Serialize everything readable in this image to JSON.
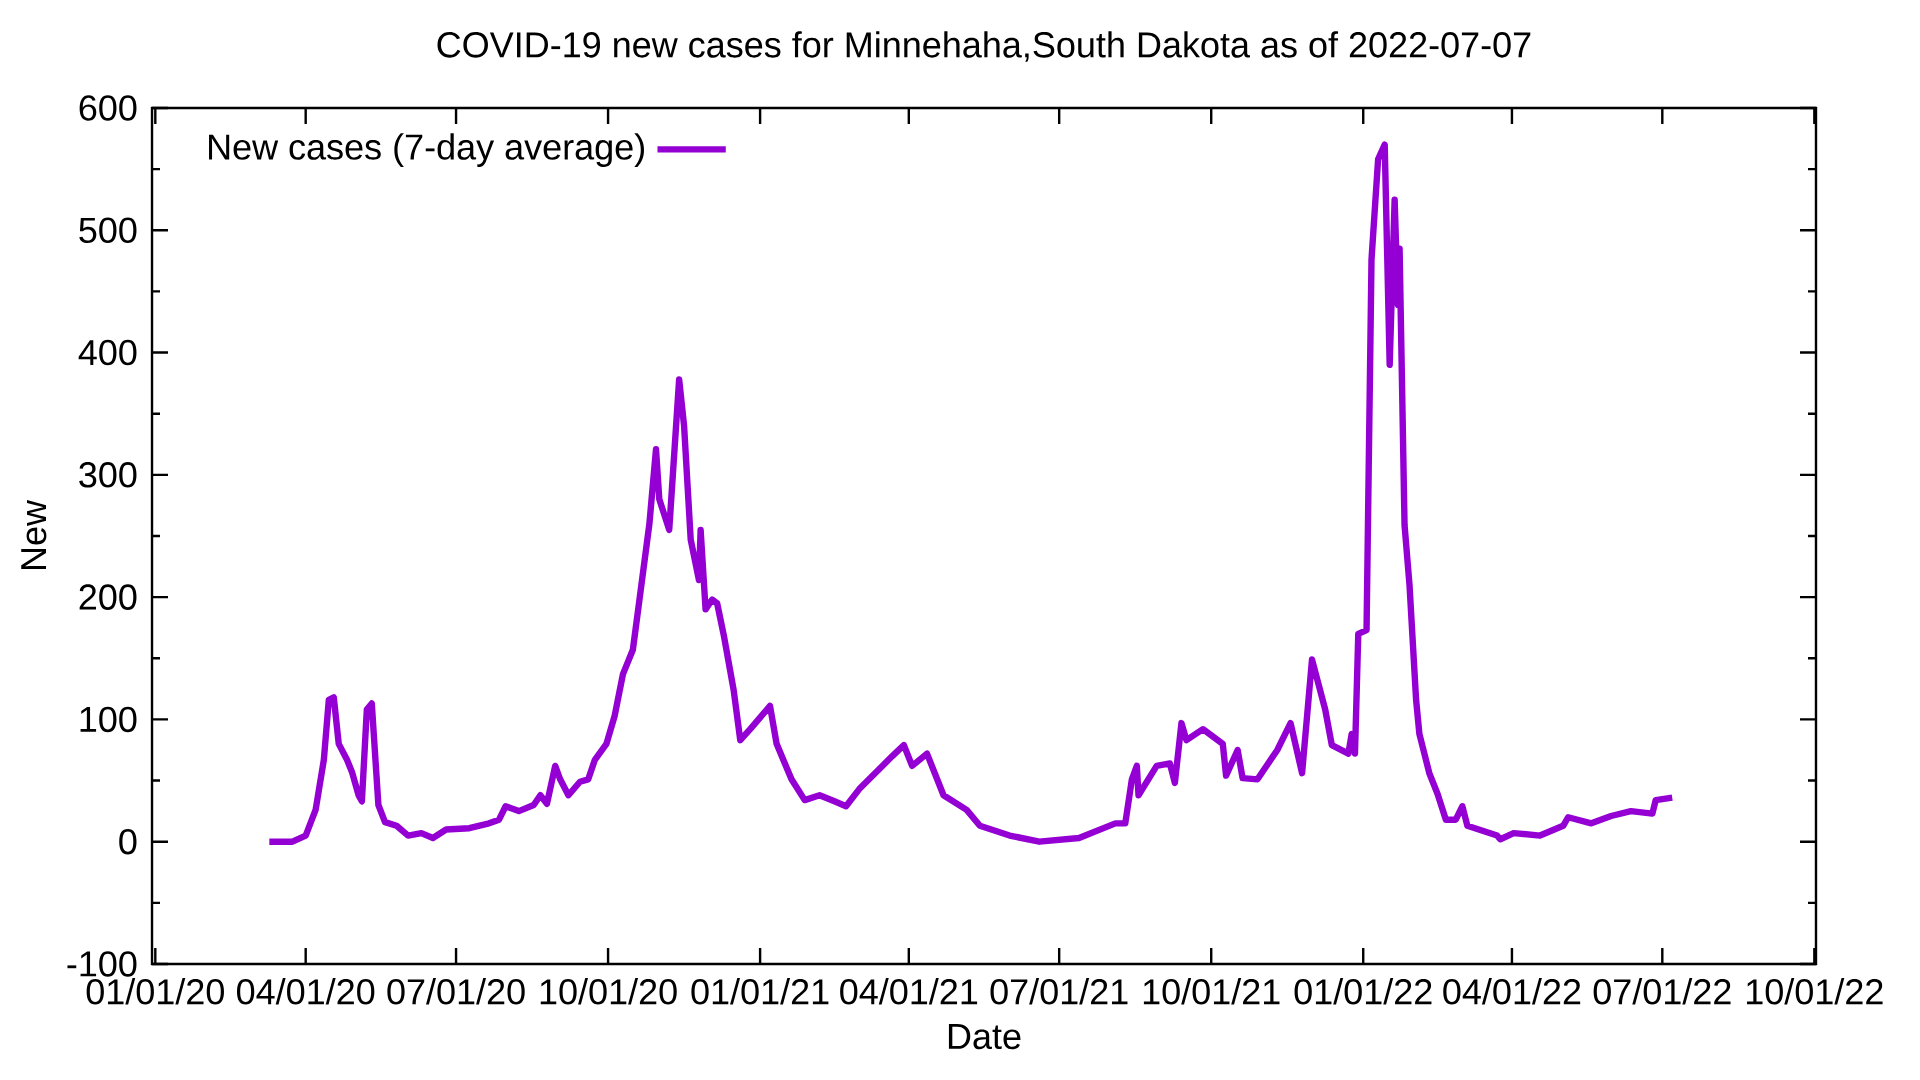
{
  "chart_data": {
    "type": "line",
    "title": "COVID-19 new cases for Minnehaha,South Dakota as of 2022-07-07",
    "xlabel": "Date",
    "ylabel": "New",
    "xlim": [
      "2019-12-30",
      "2022-10-02"
    ],
    "ylim": [
      -100,
      600
    ],
    "xticks": [
      {
        "value": "2020-01-01",
        "label": "01/01/20"
      },
      {
        "value": "2020-04-01",
        "label": "04/01/20"
      },
      {
        "value": "2020-07-01",
        "label": "07/01/20"
      },
      {
        "value": "2020-10-01",
        "label": "10/01/20"
      },
      {
        "value": "2021-01-01",
        "label": "01/01/21"
      },
      {
        "value": "2021-04-01",
        "label": "04/01/21"
      },
      {
        "value": "2021-07-01",
        "label": "07/01/21"
      },
      {
        "value": "2021-10-01",
        "label": "10/01/21"
      },
      {
        "value": "2022-01-01",
        "label": "01/01/22"
      },
      {
        "value": "2022-04-01",
        "label": "04/01/22"
      },
      {
        "value": "2022-07-01",
        "label": "07/01/22"
      },
      {
        "value": "2022-10-01",
        "label": "10/01/22"
      }
    ],
    "yticks": [
      -100,
      0,
      100,
      200,
      300,
      400,
      500,
      600
    ],
    "grid": false,
    "legend": "top left",
    "marker": "none",
    "line_style": "solid",
    "x": [
      "2020-03-10",
      "2020-03-24",
      "2020-04-01",
      "2020-04-07",
      "2020-04-12",
      "2020-04-15",
      "2020-04-18",
      "2020-04-21",
      "2020-04-26",
      "2020-04-29",
      "2020-05-03",
      "2020-05-05",
      "2020-05-08",
      "2020-05-11",
      "2020-05-15",
      "2020-05-19",
      "2020-05-26",
      "2020-06-02",
      "2020-06-10",
      "2020-06-17",
      "2020-06-25",
      "2020-07-09",
      "2020-07-21",
      "2020-07-27",
      "2020-07-31",
      "2020-08-08",
      "2020-08-17",
      "2020-08-21",
      "2020-08-25",
      "2020-08-30",
      "2020-09-02",
      "2020-09-07",
      "2020-09-14",
      "2020-09-19",
      "2020-09-23",
      "2020-09-30",
      "2020-10-05",
      "2020-10-10",
      "2020-10-16",
      "2020-10-20",
      "2020-10-26",
      "2020-10-30",
      "2020-11-01",
      "2020-11-07",
      "2020-11-13",
      "2020-11-16",
      "2020-11-20",
      "2020-11-25",
      "2020-11-26",
      "2020-11-29",
      "2020-12-03",
      "2020-12-06",
      "2020-12-10",
      "2020-12-16",
      "2020-12-20",
      "2020-12-26",
      "2021-01-07",
      "2021-01-11",
      "2021-01-20",
      "2021-01-28",
      "2021-02-06",
      "2021-02-15",
      "2021-02-22",
      "2021-03-02",
      "2021-03-22",
      "2021-03-29",
      "2021-04-03",
      "2021-04-12",
      "2021-04-22",
      "2021-05-06",
      "2021-05-14",
      "2021-06-01",
      "2021-06-19",
      "2021-07-13",
      "2021-08-04",
      "2021-08-10",
      "2021-08-14",
      "2021-08-17",
      "2021-08-18",
      "2021-08-29",
      "2021-09-06",
      "2021-09-09",
      "2021-09-13",
      "2021-09-16",
      "2021-09-26",
      "2021-10-08",
      "2021-10-10",
      "2021-10-17",
      "2021-10-20",
      "2021-10-29",
      "2021-11-10",
      "2021-11-18",
      "2021-11-25",
      "2021-12-01",
      "2021-12-09",
      "2021-12-13",
      "2021-12-23",
      "2021-12-25",
      "2021-12-27",
      "2021-12-29",
      "2022-01-03",
      "2022-01-06",
      "2022-01-10",
      "2022-01-14",
      "2022-01-17",
      "2022-01-20",
      "2022-01-22",
      "2022-01-23",
      "2022-01-26",
      "2022-01-29",
      "2022-02-02",
      "2022-02-04",
      "2022-02-10",
      "2022-02-15",
      "2022-02-20",
      "2022-02-26",
      "2022-03-02",
      "2022-03-05",
      "2022-03-23",
      "2022-03-25",
      "2022-04-02",
      "2022-04-18",
      "2022-05-02",
      "2022-05-05",
      "2022-05-19",
      "2022-05-31",
      "2022-06-12",
      "2022-06-25",
      "2022-06-27",
      "2022-07-07"
    ],
    "series": [
      {
        "name": "New cases (7-day average)",
        "color": "#9400d3",
        "values": [
          0,
          0,
          5,
          26,
          67,
          116,
          118,
          80,
          67,
          57,
          38,
          33,
          108,
          113,
          30,
          16,
          13,
          5,
          7,
          3,
          10,
          11,
          15,
          18,
          29,
          25,
          30,
          38,
          31,
          62,
          51,
          38,
          49,
          51,
          67,
          80,
          103,
          137,
          157,
          198,
          260,
          321,
          280,
          255,
          378,
          340,
          247,
          214,
          255,
          190,
          198,
          195,
          169,
          124,
          83,
          92,
          111,
          80,
          51,
          34,
          38,
          33,
          29,
          43,
          70,
          79,
          62,
          72,
          38,
          26,
          13,
          5,
          0,
          3,
          15,
          15,
          51,
          62,
          38,
          62,
          64,
          48,
          97,
          83,
          92,
          80,
          54,
          75,
          52,
          51,
          75,
          97,
          56,
          149,
          108,
          79,
          72,
          88,
          72,
          170,
          173,
          476,
          558,
          570,
          390,
          525,
          439,
          485,
          259,
          210,
          116,
          88,
          56,
          39,
          18,
          18,
          29,
          13,
          5,
          2,
          7,
          5,
          13,
          20,
          15,
          21,
          25,
          23,
          34,
          36
        ]
      }
    ]
  }
}
